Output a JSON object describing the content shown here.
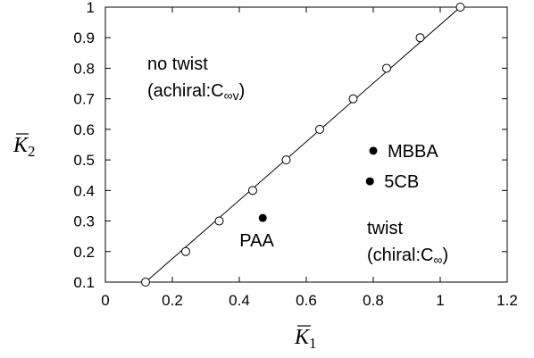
{
  "chart_data": {
    "type": "scatter",
    "xlabel": {
      "symbol": "K",
      "subscript": "1"
    },
    "ylabel": {
      "symbol": "K",
      "subscript": "2"
    },
    "xlim": [
      0,
      1.2
    ],
    "ylim": [
      0.1,
      1.0
    ],
    "x_ticks": [
      "0",
      "0.2",
      "0.4",
      "0.6",
      "0.8",
      "1",
      "1.2"
    ],
    "y_ticks": [
      "0.1",
      "0.2",
      "0.3",
      "0.4",
      "0.5",
      "0.6",
      "0.7",
      "0.8",
      "0.9",
      "1"
    ],
    "grid": false,
    "boundary_line": {
      "x": [
        0.12,
        1.06
      ],
      "y": [
        0.1,
        1.0
      ]
    },
    "open_circles": {
      "x": [
        0.12,
        0.24,
        0.34,
        0.44,
        0.54,
        0.64,
        0.74,
        0.84,
        0.94,
        1.06
      ],
      "y": [
        0.1,
        0.2,
        0.3,
        0.4,
        0.5,
        0.6,
        0.7,
        0.8,
        0.9,
        1.0
      ]
    },
    "materials": [
      {
        "label": "PAA",
        "x": 0.47,
        "y": 0.31
      },
      {
        "label": "MBBA",
        "x": 0.8,
        "y": 0.53
      },
      {
        "label": "5CB",
        "x": 0.79,
        "y": 0.43
      }
    ],
    "annotations": {
      "no_twist": "no twist",
      "achiral_prefix": "(achiral:",
      "achiral_symbol": "C",
      "achiral_sub": "∞v",
      "achiral_suffix": ")",
      "twist": "twist",
      "chiral_prefix": "(chiral:",
      "chiral_symbol": "C",
      "chiral_sub": "∞",
      "chiral_suffix": ")"
    }
  }
}
